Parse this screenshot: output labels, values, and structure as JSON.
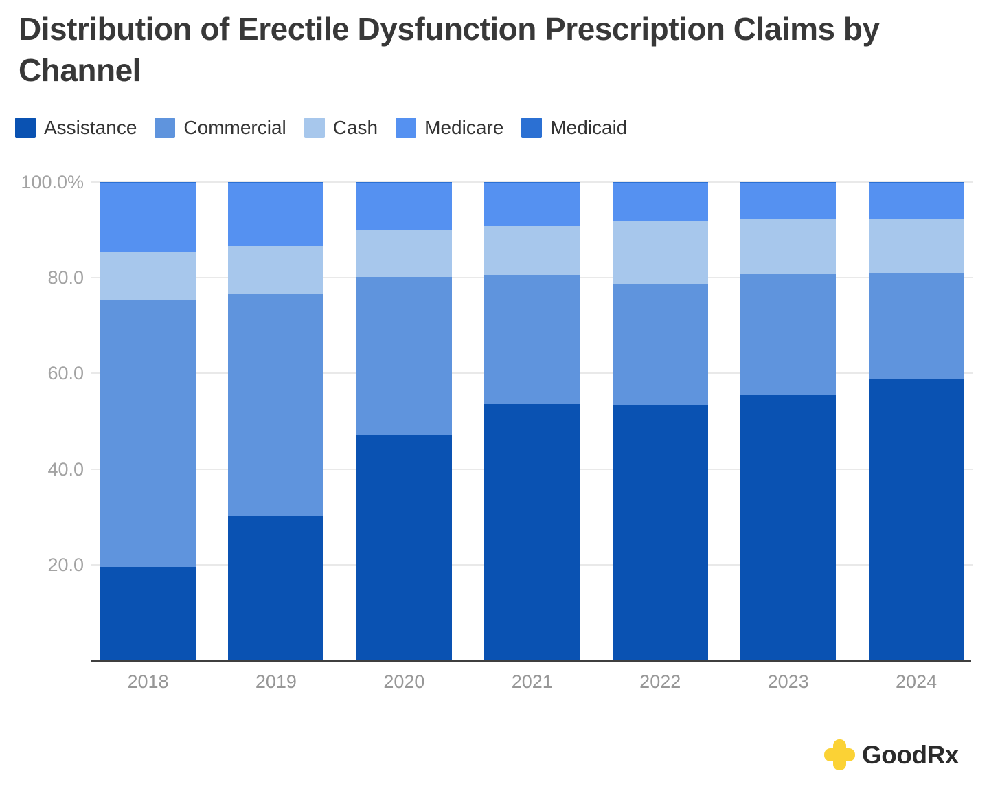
{
  "header": {
    "title": "Distribution of Erectile Dysfunction Prescription Claims by Channel"
  },
  "footer": {
    "logo_text": "GoodRx",
    "logo_color": "#FBD235",
    "logo_text_color": "#2b2b2b"
  },
  "chart_data": {
    "type": "bar",
    "stacked": true,
    "units": "percent",
    "title": "Distribution of Erectile Dysfunction Prescription Claims by Channel",
    "xlabel": "",
    "ylabel": "",
    "ylim": [
      0,
      100
    ],
    "grid": true,
    "legend_position": "top",
    "categories": [
      "2018",
      "2019",
      "2020",
      "2021",
      "2022",
      "2023",
      "2024"
    ],
    "series": [
      {
        "name": "Assistance",
        "color": "#0a52b2",
        "values": [
          19.6,
          30.2,
          47.2,
          53.6,
          53.4,
          55.5,
          58.8
        ]
      },
      {
        "name": "Commercial",
        "color": "#5f94dd",
        "values": [
          55.7,
          46.4,
          33.0,
          27.0,
          25.4,
          25.3,
          22.3
        ]
      },
      {
        "name": "Cash",
        "color": "#a7c7ec",
        "values": [
          10.1,
          10.0,
          9.7,
          10.2,
          13.2,
          11.5,
          11.3
        ]
      },
      {
        "name": "Medicare",
        "color": "#5591f1",
        "values": [
          14.3,
          13.1,
          9.8,
          8.9,
          7.7,
          7.4,
          7.3
        ]
      },
      {
        "name": "Medicaid",
        "color": "#2b70d3",
        "values": [
          0.3,
          0.3,
          0.3,
          0.3,
          0.3,
          0.3,
          0.3
        ]
      }
    ],
    "yticks": [
      {
        "value": 100,
        "label": "100.0%"
      },
      {
        "value": 80,
        "label": "80.0"
      },
      {
        "value": 60,
        "label": "60.0"
      },
      {
        "value": 40,
        "label": "40.0"
      },
      {
        "value": 20,
        "label": "20.0"
      }
    ]
  }
}
